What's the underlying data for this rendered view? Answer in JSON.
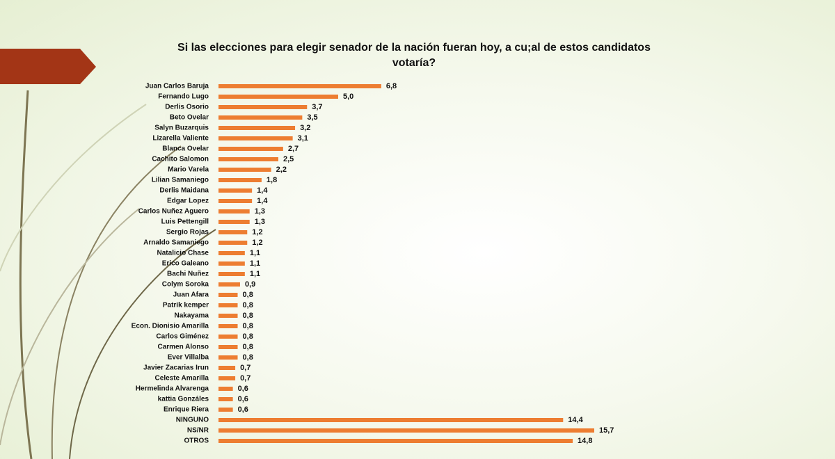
{
  "chart_data": {
    "type": "hbar",
    "title": "Si las elecciones para elegir senador de la nación fueran hoy, a cu;al de estos candidatos votaría?",
    "color": "#ed7d31",
    "categories": [
      "Juan Carlos Baruja",
      "Fernando Lugo",
      "Derlis Osorio",
      "Beto Ovelar",
      "Salyn Buzarquis",
      "Lizarella Valiente",
      "Blanca Ovelar",
      "Cachito Salomon",
      "Mario Varela",
      "Lilian Samaniego",
      "Derlis Maidana",
      "Edgar Lopez",
      "Carlos Nuñez Aguero",
      "Luis Pettengill",
      "Sergio Rojas",
      "Arnaldo Samaniego",
      "Natalicio Chase",
      "Erico Galeano",
      "Bachi Nuñez",
      "Colym Soroka",
      "Juan Afara",
      "Patrik kemper",
      "Nakayama",
      "Econ. Dionisio Amarilla",
      "Carlos Giménez",
      "Carmen Alonso",
      "Ever Villalba",
      "Javier Zacarias Irun",
      "Celeste Amarilla",
      "Hermelinda Alvarenga",
      "kattia Gonzáles",
      "Enrique Riera",
      "NINGUNO",
      "NS/NR",
      "OTROS"
    ],
    "values": [
      6.8,
      5.0,
      3.7,
      3.5,
      3.2,
      3.1,
      2.7,
      2.5,
      2.2,
      1.8,
      1.4,
      1.4,
      1.3,
      1.3,
      1.2,
      1.2,
      1.1,
      1.1,
      1.1,
      0.9,
      0.8,
      0.8,
      0.8,
      0.8,
      0.8,
      0.8,
      0.8,
      0.7,
      0.7,
      0.6,
      0.6,
      0.6,
      14.4,
      15.7,
      14.8
    ],
    "value_labels": [
      "6,8",
      "5,0",
      "3,7",
      "3,5",
      "3,2",
      "3,1",
      "2,7",
      "2,5",
      "2,2",
      "1,8",
      "1,4",
      "1,4",
      "1,3",
      "1,3",
      "1,2",
      "1,2",
      "1,1",
      "1,1",
      "1,1",
      "0,9",
      "0,8",
      "0,8",
      "0,8",
      "0,8",
      "0,8",
      "0,8",
      "0,8",
      "0,7",
      "0,7",
      "0,6",
      "0,6",
      "0,6",
      "14,4",
      "15,7",
      "14,8"
    ]
  }
}
